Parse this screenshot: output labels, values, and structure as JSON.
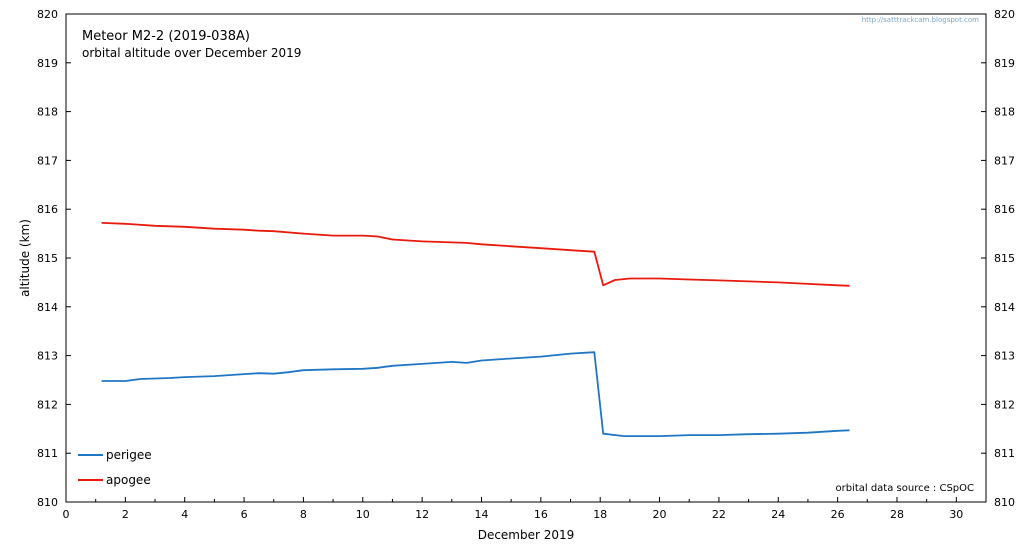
{
  "chart_data": {
    "type": "line",
    "title": "Meteor M2-2 (2019-038A)",
    "subtitle": "orbital altitude over December 2019",
    "xlabel": "December 2019",
    "ylabel": "altitude (km)",
    "xlim": [
      0,
      31
    ],
    "ylim": [
      810,
      820
    ],
    "x_ticks": [
      0,
      2,
      4,
      6,
      8,
      10,
      12,
      14,
      16,
      18,
      20,
      22,
      24,
      26,
      28,
      30
    ],
    "y_ticks": [
      810,
      811,
      812,
      813,
      814,
      815,
      816,
      817,
      818,
      819,
      820
    ],
    "right_axis_labels": true,
    "grid": false,
    "legend_position": "bottom-left",
    "source_note": "orbital data source : CSpOC",
    "url_note": "http://satttrackcam.blogspot.com",
    "series": [
      {
        "name": "perigee",
        "color": "#1f77c4",
        "x": [
          1.2,
          2.0,
          2.5,
          3.5,
          4.0,
          5.0,
          6.0,
          6.5,
          7.0,
          7.5,
          8.0,
          9.0,
          10.0,
          10.5,
          11.0,
          12.0,
          13.0,
          13.5,
          14.0,
          15.0,
          16.0,
          17.0,
          17.8,
          18.1,
          18.8,
          20.0,
          20.5,
          21.0,
          22.0,
          23.0,
          24.0,
          25.0,
          26.0,
          26.4
        ],
        "values": [
          812.48,
          812.48,
          812.52,
          812.54,
          812.56,
          812.58,
          812.62,
          812.64,
          812.63,
          812.66,
          812.7,
          812.72,
          812.73,
          812.75,
          812.79,
          812.83,
          812.87,
          812.85,
          812.9,
          812.94,
          812.98,
          813.04,
          813.07,
          811.4,
          811.35,
          811.35,
          811.36,
          811.37,
          811.37,
          811.39,
          811.4,
          811.42,
          811.46,
          811.47
        ]
      },
      {
        "name": "apogee",
        "color": "#e81a0c",
        "x": [
          1.2,
          2.0,
          3.0,
          4.0,
          5.0,
          6.0,
          6.5,
          7.0,
          8.0,
          9.0,
          10.0,
          10.5,
          11.0,
          12.0,
          13.0,
          13.5,
          14.0,
          15.0,
          16.0,
          17.0,
          17.8,
          18.1,
          18.5,
          19.0,
          20.0,
          21.0,
          22.0,
          23.0,
          24.0,
          25.0,
          26.0,
          26.4
        ],
        "values": [
          815.72,
          815.7,
          815.66,
          815.64,
          815.6,
          815.58,
          815.56,
          815.55,
          815.5,
          815.46,
          815.46,
          815.44,
          815.38,
          815.34,
          815.32,
          815.31,
          815.28,
          815.24,
          815.2,
          815.16,
          815.13,
          814.44,
          814.55,
          814.58,
          814.58,
          814.56,
          814.54,
          814.52,
          814.5,
          814.47,
          814.44,
          814.43
        ]
      }
    ]
  }
}
